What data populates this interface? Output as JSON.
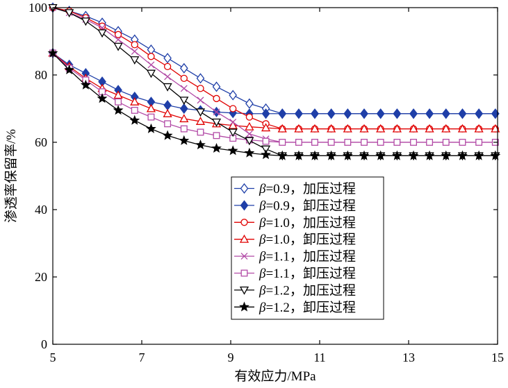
{
  "chart_data": {
    "type": "line",
    "title": "",
    "xlabel": "有效应力/MPa",
    "ylabel": "渗透率保留率/%",
    "xlim": [
      5,
      15
    ],
    "ylim": [
      0,
      100
    ],
    "xticks": [
      5,
      7,
      9,
      11,
      13,
      15
    ],
    "yticks": [
      0,
      20,
      40,
      60,
      80,
      100
    ],
    "grid": false,
    "legend_position": "center",
    "x": [
      5.0,
      5.37,
      5.74,
      6.11,
      6.47,
      6.84,
      7.21,
      7.58,
      7.95,
      8.32,
      8.68,
      9.05,
      9.42,
      9.79,
      10.16,
      10.53,
      10.89,
      11.26,
      11.63,
      12.0,
      12.37,
      12.74,
      13.11,
      13.47,
      13.84,
      14.21,
      14.58,
      14.95
    ],
    "series": [
      {
        "beta": "=0.9",
        "process": "加压过程",
        "color": "#1f3fa8",
        "marker": "diamond-open",
        "values": [
          100,
          99,
          97.5,
          95.5,
          93,
          90.5,
          87.5,
          85,
          82,
          79,
          76.5,
          74,
          71.5,
          70,
          68.5,
          68.5,
          68.5,
          68.5,
          68.5,
          68.5,
          68.5,
          68.5,
          68.5,
          68.5,
          68.5,
          68.5,
          68.5,
          68.5
        ]
      },
      {
        "beta": "=0.9",
        "process": "卸压过程",
        "color": "#1f3fa8",
        "marker": "diamond-filled",
        "values": [
          86.5,
          83,
          80.5,
          78,
          75.5,
          73.5,
          72,
          71,
          70,
          69.5,
          69,
          68.7,
          68.5,
          68.5,
          68.5,
          68.5,
          68.5,
          68.5,
          68.5,
          68.5,
          68.5,
          68.5,
          68.5,
          68.5,
          68.5,
          68.5,
          68.5,
          68.5
        ]
      },
      {
        "beta": "=1.0",
        "process": "加压过程",
        "color": "#e00000",
        "marker": "circle-open",
        "values": [
          100,
          99,
          97,
          94.5,
          92,
          89,
          85.5,
          82.5,
          79,
          76,
          73,
          70,
          67.5,
          65.5,
          64,
          64,
          64,
          64,
          64,
          64,
          64,
          64,
          64,
          64,
          64,
          64,
          64,
          64
        ]
      },
      {
        "beta": "=1.0",
        "process": "卸压过程",
        "color": "#e00000",
        "marker": "triangle-up-open",
        "values": [
          86.5,
          82.5,
          79,
          76,
          74,
          72,
          70,
          68.5,
          67,
          66.2,
          65.5,
          65,
          64.6,
          64.3,
          64,
          64,
          64,
          64,
          64,
          64,
          64,
          64,
          64,
          64,
          64,
          64,
          64,
          64
        ]
      },
      {
        "beta": "=1.1",
        "process": "加压过程",
        "color": "#b24aa6",
        "marker": "x",
        "values": [
          100,
          98.5,
          96.5,
          94,
          90.5,
          87,
          83,
          79.5,
          76,
          72.5,
          69,
          66,
          62.5,
          61,
          60,
          60,
          60,
          60,
          60,
          60,
          60,
          60,
          60,
          60,
          60,
          60,
          60,
          60
        ]
      },
      {
        "beta": "=1.1",
        "process": "卸压过程",
        "color": "#b24aa6",
        "marker": "square-open",
        "values": [
          86.5,
          82,
          78.5,
          75,
          72,
          69.5,
          67.5,
          65.5,
          64,
          63,
          62,
          61.2,
          60.7,
          60.3,
          60,
          60,
          60,
          60,
          60,
          60,
          60,
          60,
          60,
          60,
          60,
          60,
          60,
          60
        ]
      },
      {
        "beta": "=1.2",
        "process": "加压过程",
        "color": "#000000",
        "marker": "triangle-down-open",
        "values": [
          100,
          98.5,
          96,
          92.5,
          88.5,
          84.5,
          80.5,
          76.5,
          72.5,
          69,
          66,
          63,
          60.5,
          58,
          56,
          56,
          56,
          56,
          56,
          56,
          56,
          56,
          56,
          56,
          56,
          56,
          56,
          56
        ]
      },
      {
        "beta": "=1.2",
        "process": "卸压过程",
        "color": "#000000",
        "marker": "star",
        "values": [
          86.5,
          81.5,
          77,
          73,
          69.5,
          66.5,
          64,
          62,
          60.5,
          59.2,
          58.2,
          57.5,
          56.8,
          56.3,
          56,
          56,
          56,
          56,
          56,
          56,
          56,
          56,
          56,
          56,
          56,
          56,
          56,
          56
        ]
      }
    ]
  }
}
